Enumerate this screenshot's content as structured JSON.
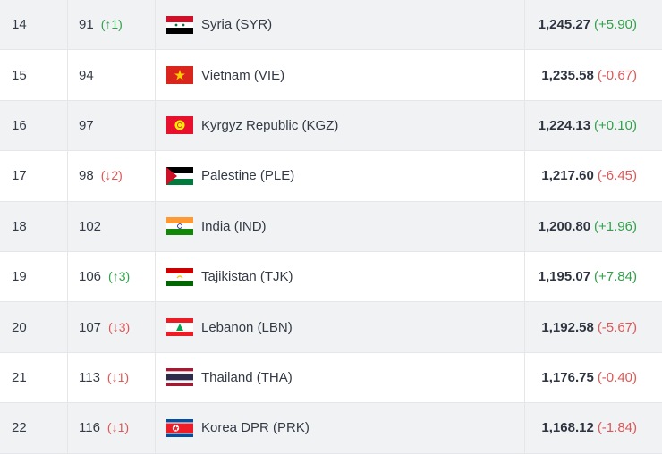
{
  "rankings": [
    {
      "rank": "14",
      "previous_points_rank": "91",
      "movement": "(↑1)",
      "movement_dir": "up",
      "team": "Syria (SYR)",
      "flag_icon": "syria-flag-icon",
      "points": "1,245.27",
      "change": "(+5.90)",
      "change_dir": "pos"
    },
    {
      "rank": "15",
      "previous_points_rank": "94",
      "movement": "",
      "movement_dir": "",
      "team": "Vietnam (VIE)",
      "flag_icon": "vietnam-flag-icon",
      "points": "1,235.58",
      "change": "(-0.67)",
      "change_dir": "neg"
    },
    {
      "rank": "16",
      "previous_points_rank": "97",
      "movement": "",
      "movement_dir": "",
      "team": "Kyrgyz Republic (KGZ)",
      "flag_icon": "kyrgyzstan-flag-icon",
      "points": "1,224.13",
      "change": "(+0.10)",
      "change_dir": "pos"
    },
    {
      "rank": "17",
      "previous_points_rank": "98",
      "movement": "(↓2)",
      "movement_dir": "down",
      "team": "Palestine (PLE)",
      "flag_icon": "palestine-flag-icon",
      "points": "1,217.60",
      "change": "(-6.45)",
      "change_dir": "neg"
    },
    {
      "rank": "18",
      "previous_points_rank": "102",
      "movement": "",
      "movement_dir": "",
      "team": "India (IND)",
      "flag_icon": "india-flag-icon",
      "points": "1,200.80",
      "change": "(+1.96)",
      "change_dir": "pos"
    },
    {
      "rank": "19",
      "previous_points_rank": "106",
      "movement": "(↑3)",
      "movement_dir": "up",
      "team": "Tajikistan (TJK)",
      "flag_icon": "tajikistan-flag-icon",
      "points": "1,195.07",
      "change": "(+7.84)",
      "change_dir": "pos"
    },
    {
      "rank": "20",
      "previous_points_rank": "107",
      "movement": "(↓3)",
      "movement_dir": "down",
      "team": "Lebanon (LBN)",
      "flag_icon": "lebanon-flag-icon",
      "points": "1,192.58",
      "change": "(-5.67)",
      "change_dir": "neg"
    },
    {
      "rank": "21",
      "previous_points_rank": "113",
      "movement": "(↓1)",
      "movement_dir": "down",
      "team": "Thailand (THA)",
      "flag_icon": "thailand-flag-icon",
      "points": "1,176.75",
      "change": "(-0.40)",
      "change_dir": "neg"
    },
    {
      "rank": "22",
      "previous_points_rank": "116",
      "movement": "(↓1)",
      "movement_dir": "down",
      "team": "Korea DPR (PRK)",
      "flag_icon": "north-korea-flag-icon",
      "points": "1,168.12",
      "change": "(-1.84)",
      "change_dir": "neg"
    }
  ],
  "colors": {
    "up": "#2fa24a",
    "down": "#e05656",
    "alt_row": "#f1f2f4"
  }
}
